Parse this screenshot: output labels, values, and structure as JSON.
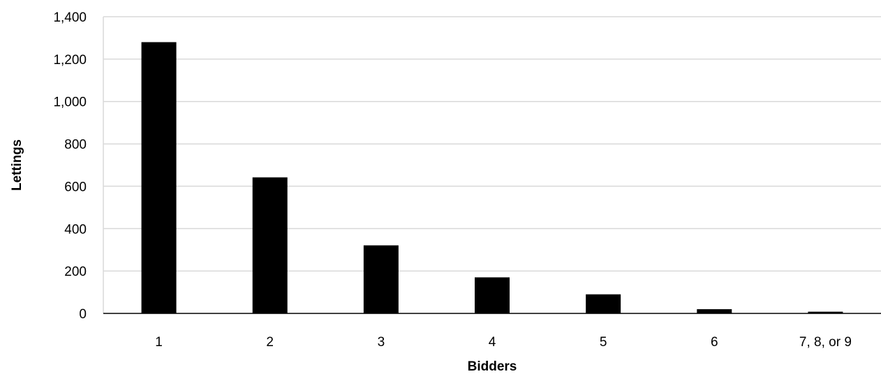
{
  "chart_data": {
    "type": "bar",
    "categories": [
      "1",
      "2",
      "3",
      "4",
      "5",
      "6",
      "7, 8, or 9"
    ],
    "values": [
      1280,
      642,
      321,
      170,
      90,
      20,
      8
    ],
    "xlabel": "Bidders",
    "ylabel": "Lettings",
    "ylim": [
      0,
      1400
    ],
    "yticks": [
      0,
      200,
      400,
      600,
      800,
      1000,
      1200,
      1400
    ],
    "ytick_labels": [
      "0",
      "200",
      "400",
      "600",
      "800",
      "1,000",
      "1,200",
      "1,400"
    ],
    "grid": true,
    "legend": "none",
    "bar_color": "#000000",
    "grid_color": "#d9d9d9"
  }
}
